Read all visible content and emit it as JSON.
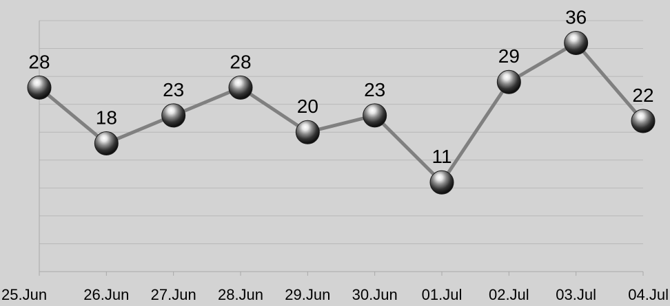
{
  "chart_data": {
    "type": "line",
    "title": "",
    "xlabel": "",
    "ylabel": "",
    "categories": [
      "25.Jun",
      "26.Jun",
      "27.Jun",
      "28.Jun",
      "29.Jun",
      "30.Jun",
      "01.Jul",
      "02.Jul",
      "03.Jul",
      "04.Jul"
    ],
    "series": [
      {
        "values": [
          28,
          18,
          23,
          28,
          20,
          23,
          11,
          29,
          36,
          22
        ]
      }
    ],
    "ylim": [
      -5,
      40
    ],
    "y_grid_step": 5,
    "grid": true,
    "legend": "none",
    "data_labels": true,
    "markers": "sphere",
    "colors": {
      "background": "#d3d3d3",
      "gridline": "#b8b8b8",
      "axis": "#a8a8a8",
      "line": "#808080",
      "marker_dark": "#1a1a1a",
      "marker_light": "#ffffff"
    }
  }
}
